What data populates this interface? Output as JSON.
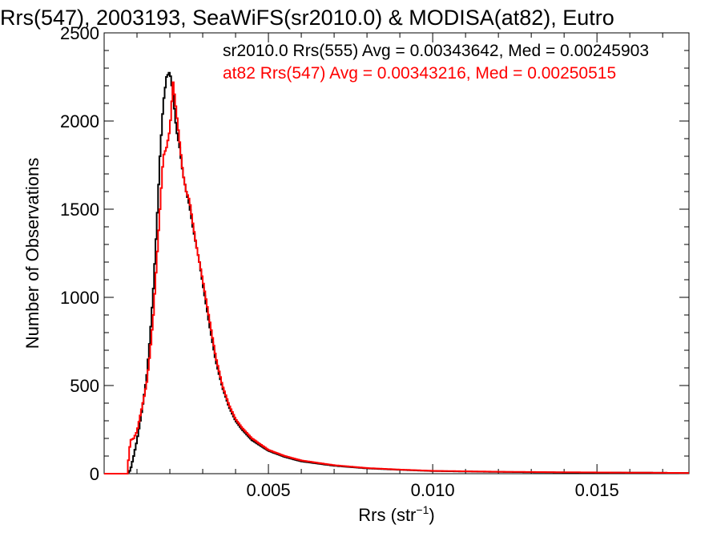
{
  "chart_data": {
    "type": "line",
    "title": "Rrs(547), 2003193, SeaWiFS(sr2010.0) & MODISA(at82), Eutro",
    "xlabel_main": "Rrs (str",
    "xlabel_sup": "−1",
    "xlabel_close": ")",
    "ylabel": "Number of Observations",
    "xlim": [
      0,
      0.0178
    ],
    "ylim": [
      0,
      2500
    ],
    "x_ticks": [
      0.005,
      0.01,
      0.015
    ],
    "x_tick_labels": [
      "0.005",
      "0.010",
      "0.015"
    ],
    "y_ticks": [
      0,
      500,
      1000,
      1500,
      2000,
      2500
    ],
    "y_tick_labels": [
      "0",
      "500",
      "1000",
      "1500",
      "2000",
      "2500"
    ],
    "grid": false,
    "legend_position": "top-right",
    "series": [
      {
        "name": "sr2010.0 Rrs(555)",
        "legend_text": "sr2010.0 Rrs(555) Avg = 0.00343642, Med = 0.00245903",
        "color": "#000000",
        "points": [
          [
            0.0007,
            0
          ],
          [
            0.0008,
            20
          ],
          [
            0.0009,
            100
          ],
          [
            0.001,
            190
          ],
          [
            0.0011,
            300
          ],
          [
            0.0012,
            420
          ],
          [
            0.0013,
            560
          ],
          [
            0.0014,
            780
          ],
          [
            0.0015,
            1050
          ],
          [
            0.0016,
            1400
          ],
          [
            0.0017,
            1800
          ],
          [
            0.0018,
            2100
          ],
          [
            0.0019,
            2250
          ],
          [
            0.002,
            2280
          ],
          [
            0.0021,
            2150
          ],
          [
            0.0022,
            1950
          ],
          [
            0.0023,
            1850
          ],
          [
            0.0024,
            1700
          ],
          [
            0.0025,
            1600
          ],
          [
            0.0026,
            1520
          ],
          [
            0.0027,
            1400
          ],
          [
            0.0028,
            1300
          ],
          [
            0.0029,
            1200
          ],
          [
            0.003,
            1080
          ],
          [
            0.0032,
            850
          ],
          [
            0.0034,
            640
          ],
          [
            0.0036,
            490
          ],
          [
            0.0038,
            380
          ],
          [
            0.004,
            300
          ],
          [
            0.0042,
            250
          ],
          [
            0.0045,
            190
          ],
          [
            0.005,
            130
          ],
          [
            0.0055,
            95
          ],
          [
            0.006,
            70
          ],
          [
            0.007,
            45
          ],
          [
            0.008,
            30
          ],
          [
            0.009,
            22
          ],
          [
            0.01,
            15
          ],
          [
            0.012,
            10
          ],
          [
            0.014,
            7
          ],
          [
            0.016,
            6
          ],
          [
            0.0178,
            4
          ]
        ]
      },
      {
        "name": "at82 Rrs(547)",
        "legend_text": "at82 Rrs(547) Avg = 0.00343216, Med = 0.00250515",
        "color": "#ff0000",
        "points": [
          [
            0.0007,
            0
          ],
          [
            0.0008,
            190
          ],
          [
            0.0009,
            200
          ],
          [
            0.001,
            240
          ],
          [
            0.0011,
            330
          ],
          [
            0.0012,
            420
          ],
          [
            0.0013,
            520
          ],
          [
            0.0014,
            690
          ],
          [
            0.0015,
            900
          ],
          [
            0.0016,
            1200
          ],
          [
            0.0017,
            1500
          ],
          [
            0.0018,
            1800
          ],
          [
            0.0019,
            1850
          ],
          [
            0.002,
            1950
          ],
          [
            0.0021,
            2220
          ],
          [
            0.0022,
            2050
          ],
          [
            0.0023,
            1880
          ],
          [
            0.0024,
            1700
          ],
          [
            0.0025,
            1600
          ],
          [
            0.0026,
            1550
          ],
          [
            0.0027,
            1420
          ],
          [
            0.0028,
            1300
          ],
          [
            0.0029,
            1200
          ],
          [
            0.003,
            1100
          ],
          [
            0.0032,
            880
          ],
          [
            0.0034,
            660
          ],
          [
            0.0036,
            500
          ],
          [
            0.0038,
            390
          ],
          [
            0.004,
            310
          ],
          [
            0.0042,
            260
          ],
          [
            0.0045,
            200
          ],
          [
            0.005,
            135
          ],
          [
            0.0055,
            100
          ],
          [
            0.006,
            75
          ],
          [
            0.007,
            48
          ],
          [
            0.008,
            32
          ],
          [
            0.009,
            23
          ],
          [
            0.01,
            16
          ],
          [
            0.012,
            11
          ],
          [
            0.014,
            8
          ],
          [
            0.016,
            6
          ],
          [
            0.0178,
            4
          ]
        ]
      }
    ]
  }
}
